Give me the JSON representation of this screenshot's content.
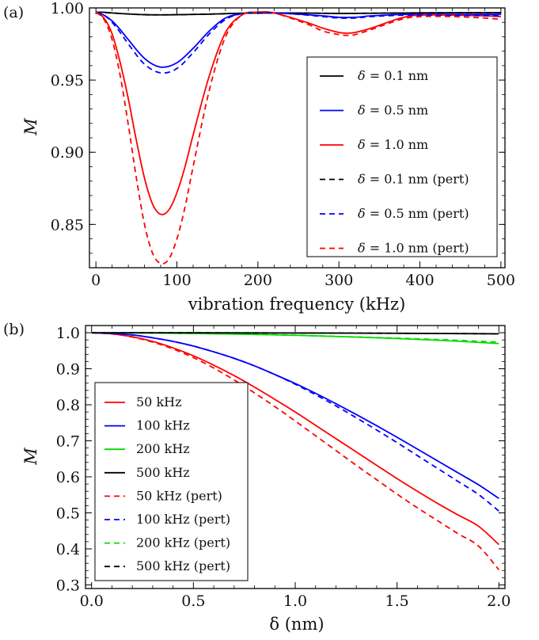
{
  "chart_data": [
    {
      "type": "line",
      "panel_label": "(a)",
      "xlabel": "vibration frequency (kHz)",
      "ylabel": "M",
      "xlim": [
        -8,
        505
      ],
      "ylim": [
        0.82,
        1.0
      ],
      "xticks": [
        0,
        100,
        200,
        300,
        400,
        500
      ],
      "xtick_labels": [
        "0",
        "100",
        "200",
        "300",
        "400",
        "500"
      ],
      "yticks": [
        0.85,
        0.9,
        0.95,
        1.0
      ],
      "ytick_labels": [
        "0.85",
        "0.90",
        "0.95",
        "1.00"
      ],
      "legend_position": "right",
      "series": [
        {
          "name": "δ = 0.1 nm",
          "color": "#000000",
          "dash": "solid",
          "x": [
            0,
            10,
            20,
            40,
            60,
            80,
            100,
            140,
            180,
            220,
            260,
            300,
            340,
            380,
            420,
            460,
            500
          ],
          "y": [
            0.997,
            0.997,
            0.9965,
            0.9958,
            0.9953,
            0.9952,
            0.9953,
            0.9957,
            0.9963,
            0.9965,
            0.9964,
            0.9962,
            0.9963,
            0.9965,
            0.9966,
            0.9967,
            0.9967
          ]
        },
        {
          "name": "δ = 0.5 nm",
          "color": "#0000ff",
          "dash": "solid",
          "x": [
            0,
            10,
            20,
            30,
            40,
            60,
            80,
            100,
            120,
            140,
            160,
            180,
            200,
            240,
            280,
            300,
            320,
            340,
            380,
            420,
            460,
            500
          ],
          "y": [
            0.997,
            0.995,
            0.991,
            0.985,
            0.978,
            0.965,
            0.959,
            0.962,
            0.972,
            0.984,
            0.993,
            0.996,
            0.997,
            0.996,
            0.9945,
            0.9935,
            0.9935,
            0.9945,
            0.9955,
            0.9955,
            0.9955,
            0.9955
          ]
        },
        {
          "name": "δ = 1.0 nm",
          "color": "#ff0000",
          "dash": "solid",
          "x": [
            0,
            10,
            20,
            30,
            40,
            50,
            60,
            70,
            80,
            90,
            100,
            110,
            120,
            140,
            160,
            180,
            200,
            220,
            260,
            280,
            300,
            310,
            320,
            340,
            360,
            380,
            400,
            440,
            480,
            500
          ],
          "y": [
            0.997,
            0.993,
            0.982,
            0.962,
            0.937,
            0.908,
            0.882,
            0.864,
            0.857,
            0.86,
            0.872,
            0.89,
            0.912,
            0.953,
            0.983,
            0.995,
            0.997,
            0.9965,
            0.99,
            0.986,
            0.983,
            0.9825,
            0.983,
            0.986,
            0.99,
            0.9935,
            0.995,
            0.995,
            0.9945,
            0.994
          ]
        },
        {
          "name": "δ = 0.1 nm (pert)",
          "color": "#000000",
          "dash": "dashed",
          "x": [
            0,
            20,
            40,
            60,
            80,
            100,
            140,
            180,
            220,
            260,
            300,
            340,
            380,
            420,
            460,
            500
          ],
          "y": [
            0.997,
            0.9965,
            0.9958,
            0.9953,
            0.9952,
            0.9953,
            0.9957,
            0.9963,
            0.9965,
            0.9964,
            0.9962,
            0.9963,
            0.9965,
            0.9966,
            0.9967,
            0.9967
          ]
        },
        {
          "name": "δ = 0.5 nm (pert)",
          "color": "#0000ff",
          "dash": "dashed",
          "x": [
            0,
            10,
            20,
            30,
            40,
            60,
            80,
            100,
            120,
            140,
            160,
            180,
            200,
            240,
            280,
            300,
            320,
            340,
            380,
            420,
            460,
            500
          ],
          "y": [
            0.997,
            0.995,
            0.99,
            0.983,
            0.975,
            0.961,
            0.955,
            0.958,
            0.969,
            0.982,
            0.992,
            0.996,
            0.997,
            0.996,
            0.994,
            0.993,
            0.993,
            0.994,
            0.995,
            0.995,
            0.9948,
            0.9945
          ]
        },
        {
          "name": "δ = 1.0 nm (pert)",
          "color": "#ff0000",
          "dash": "dashed",
          "x": [
            0,
            10,
            20,
            30,
            40,
            50,
            60,
            70,
            80,
            90,
            100,
            110,
            120,
            140,
            160,
            180,
            200,
            220,
            260,
            280,
            300,
            310,
            320,
            340,
            360,
            380,
            400,
            440,
            480,
            500
          ],
          "y": [
            0.997,
            0.992,
            0.978,
            0.953,
            0.919,
            0.882,
            0.85,
            0.83,
            0.823,
            0.826,
            0.84,
            0.862,
            0.89,
            0.943,
            0.98,
            0.995,
            0.997,
            0.9965,
            0.989,
            0.984,
            0.9815,
            0.981,
            0.9815,
            0.985,
            0.989,
            0.9925,
            0.994,
            0.994,
            0.993,
            0.992
          ]
        }
      ]
    },
    {
      "type": "line",
      "panel_label": "(b)",
      "xlabel": "δ  (nm)",
      "ylabel": "M",
      "xlim": [
        -0.03,
        2.03
      ],
      "ylim": [
        0.29,
        1.02
      ],
      "xticks": [
        0,
        0.5,
        1.0,
        1.5,
        2.0
      ],
      "xtick_labels": [
        "0.0",
        "0.5",
        "1.0",
        "1.5",
        "2.0"
      ],
      "yticks": [
        0.3,
        0.4,
        0.5,
        0.6,
        0.7,
        0.8,
        0.9,
        1.0
      ],
      "ytick_labels": [
        "0.3",
        "0.4",
        "0.5",
        "0.6",
        "0.7",
        "0.8",
        "0.9",
        "1.0"
      ],
      "legend_position": "left",
      "series": [
        {
          "name": "50 kHz",
          "color": "#ff0000",
          "dash": "solid",
          "x": [
            0,
            0.1,
            0.2,
            0.3,
            0.4,
            0.5,
            0.6,
            0.7,
            0.8,
            0.9,
            1.0,
            1.1,
            1.2,
            1.3,
            1.4,
            1.5,
            1.6,
            1.7,
            1.8,
            1.9,
            2.0
          ],
          "y": [
            1.0,
            0.997,
            0.989,
            0.976,
            0.958,
            0.936,
            0.91,
            0.881,
            0.849,
            0.815,
            0.78,
            0.743,
            0.706,
            0.669,
            0.632,
            0.595,
            0.56,
            0.526,
            0.494,
            0.463,
            0.412
          ]
        },
        {
          "name": "100 kHz",
          "color": "#0000ff",
          "dash": "solid",
          "x": [
            0,
            0.1,
            0.2,
            0.3,
            0.4,
            0.5,
            0.6,
            0.7,
            0.8,
            0.9,
            1.0,
            1.1,
            1.2,
            1.3,
            1.4,
            1.5,
            1.6,
            1.7,
            1.8,
            1.9,
            2.0
          ],
          "y": [
            1.0,
            0.998,
            0.994,
            0.986,
            0.976,
            0.963,
            0.947,
            0.929,
            0.908,
            0.884,
            0.859,
            0.832,
            0.803,
            0.773,
            0.742,
            0.71,
            0.677,
            0.644,
            0.611,
            0.578,
            0.54
          ]
        },
        {
          "name": "200 kHz",
          "color": "#00dd00",
          "dash": "solid",
          "x": [
            0,
            0.25,
            0.5,
            0.75,
            1.0,
            1.25,
            1.5,
            1.75,
            2.0
          ],
          "y": [
            1.0,
            0.9995,
            0.998,
            0.996,
            0.993,
            0.989,
            0.984,
            0.978,
            0.97
          ]
        },
        {
          "name": "500 kHz",
          "color": "#000000",
          "dash": "solid",
          "x": [
            0,
            0.5,
            1.0,
            1.5,
            2.0
          ],
          "y": [
            1.0,
            0.9998,
            0.9993,
            0.9985,
            0.997
          ]
        },
        {
          "name": "50 kHz (pert)",
          "color": "#ff0000",
          "dash": "dashed",
          "x": [
            0,
            0.1,
            0.2,
            0.3,
            0.4,
            0.5,
            0.6,
            0.7,
            0.8,
            0.9,
            1.0,
            1.1,
            1.2,
            1.3,
            1.4,
            1.5,
            1.6,
            1.7,
            1.8,
            1.9,
            2.0
          ],
          "y": [
            1.0,
            0.997,
            0.988,
            0.974,
            0.955,
            0.931,
            0.902,
            0.869,
            0.833,
            0.795,
            0.755,
            0.714,
            0.673,
            0.632,
            0.592,
            0.552,
            0.514,
            0.478,
            0.442,
            0.408,
            0.342
          ]
        },
        {
          "name": "100 kHz (pert)",
          "color": "#0000ff",
          "dash": "dashed",
          "x": [
            0,
            0.1,
            0.2,
            0.3,
            0.4,
            0.5,
            0.6,
            0.7,
            0.8,
            0.9,
            1.0,
            1.1,
            1.2,
            1.3,
            1.4,
            1.5,
            1.6,
            1.7,
            1.8,
            1.9,
            2.0
          ],
          "y": [
            1.0,
            0.998,
            0.994,
            0.986,
            0.976,
            0.963,
            0.947,
            0.929,
            0.908,
            0.884,
            0.857,
            0.828,
            0.797,
            0.764,
            0.73,
            0.695,
            0.659,
            0.623,
            0.587,
            0.551,
            0.505
          ]
        },
        {
          "name": "200 kHz (pert)",
          "color": "#00dd00",
          "dash": "dashed",
          "x": [
            0,
            0.25,
            0.5,
            0.75,
            1.0,
            1.25,
            1.5,
            1.75,
            2.0
          ],
          "y": [
            1.0,
            0.9995,
            0.998,
            0.996,
            0.993,
            0.989,
            0.985,
            0.98,
            0.974
          ]
        },
        {
          "name": "500 kHz (pert)",
          "color": "#000000",
          "dash": "dashed",
          "x": [
            0,
            0.5,
            1.0,
            1.5,
            2.0
          ],
          "y": [
            1.0,
            0.9998,
            0.9993,
            0.9985,
            0.997
          ]
        }
      ]
    }
  ]
}
